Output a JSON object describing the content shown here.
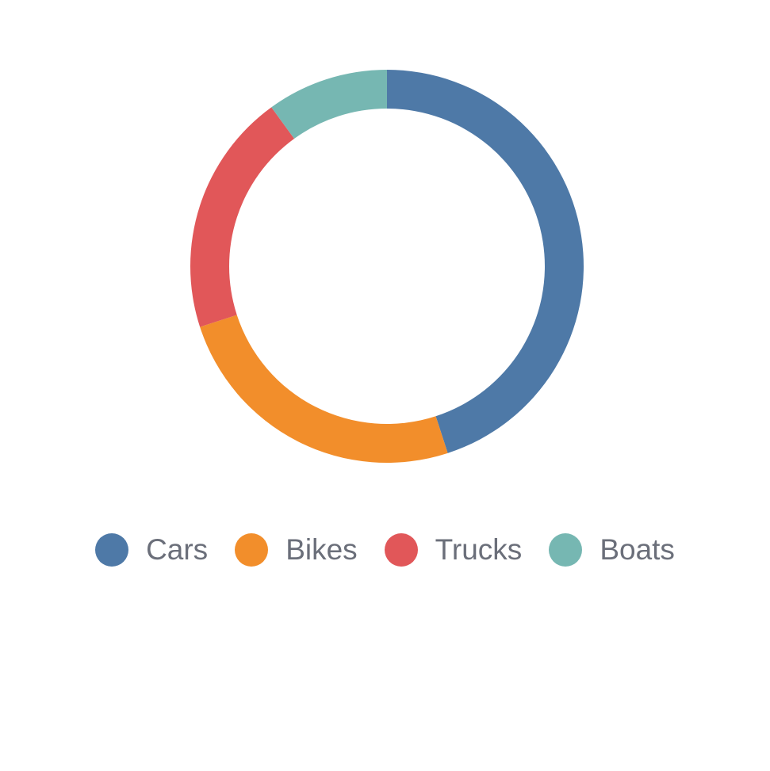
{
  "chart_data": {
    "type": "pie",
    "donut": true,
    "title": "",
    "categories": [
      "Cars",
      "Bikes",
      "Trucks",
      "Boats"
    ],
    "values": [
      45,
      25,
      20,
      10
    ],
    "colors": [
      "#4e79a7",
      "#f28e2b",
      "#e15759",
      "#76b7b2"
    ],
    "start_angle": "top",
    "direction": "clockwise",
    "legend_position": "bottom"
  }
}
